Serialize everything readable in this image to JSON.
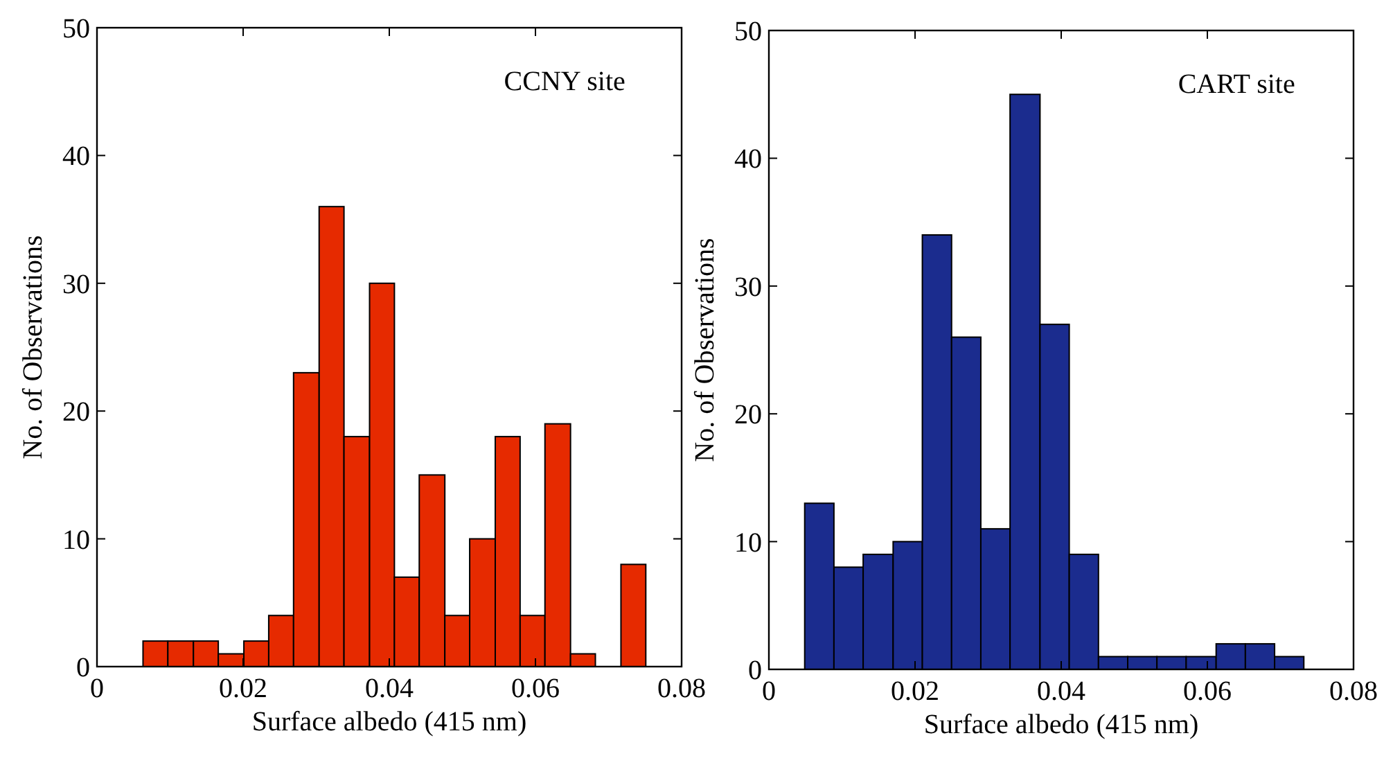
{
  "chart_data": [
    {
      "type": "histogram",
      "xlabel": "Surface albedo (415 nm)",
      "ylabel": "No. of Observations",
      "annotations": [
        "CCNY site"
      ],
      "color": "#e62a00",
      "bins": [
        0.0063,
        0.0097,
        0.0132,
        0.0166,
        0.0201,
        0.0235,
        0.0269,
        0.0304,
        0.0338,
        0.0373,
        0.0407,
        0.0441,
        0.0476,
        0.051,
        0.0545,
        0.0579,
        0.0613,
        0.0648,
        0.0682,
        0.0717,
        0.0751
      ],
      "values": [
        2,
        2,
        2,
        1,
        2,
        4,
        23,
        36,
        18,
        30,
        7,
        15,
        4,
        10,
        18,
        4,
        19,
        1,
        0,
        8
      ],
      "xlim": [
        0,
        0.08
      ],
      "xticks": [
        0,
        0.02,
        0.04,
        0.06,
        0.08
      ],
      "ylim": [
        0,
        50
      ],
      "yticks": [
        0,
        10,
        20,
        30,
        40,
        50
      ]
    },
    {
      "type": "histogram",
      "xlabel": "Surface albedo (415 nm)",
      "ylabel": "No. of Observations",
      "annotations": [
        "CART site"
      ],
      "color": "#1b2c8e",
      "bins": [
        0.0049,
        0.0089,
        0.0129,
        0.017,
        0.021,
        0.025,
        0.029,
        0.033,
        0.0371,
        0.0411,
        0.0451,
        0.0491,
        0.0531,
        0.0571,
        0.0612,
        0.0652,
        0.0692,
        0.0732
      ],
      "values": [
        13,
        8,
        9,
        10,
        34,
        26,
        11,
        45,
        27,
        9,
        1,
        1,
        1,
        1,
        2,
        2,
        1
      ],
      "xlim": [
        0,
        0.08
      ],
      "xticks": [
        0,
        0.02,
        0.04,
        0.06,
        0.08
      ],
      "ylim": [
        0,
        50
      ],
      "yticks": [
        0,
        10,
        20,
        30,
        40,
        50
      ]
    }
  ]
}
